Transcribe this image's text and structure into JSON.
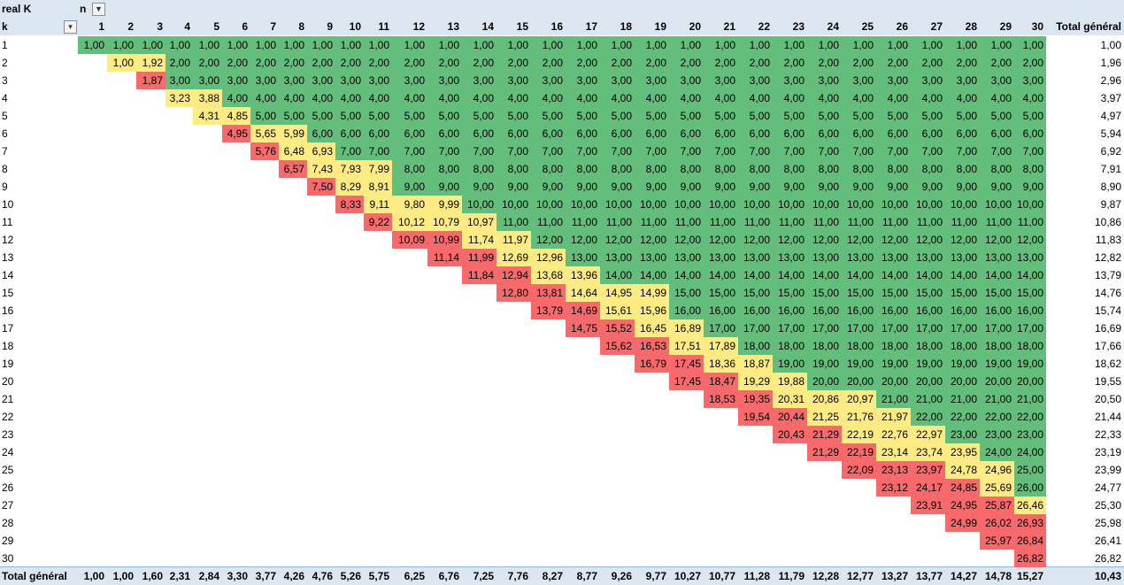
{
  "pivot": {
    "row_field_title": "real K",
    "col_field_title": "n",
    "row_field_name": "k",
    "total_label": "Total général",
    "filter_icon": "filter-funnel-icon",
    "dropdown_icon": "dropdown-arrow-icon",
    "colors": {
      "green": "#63be7b",
      "yellow": "#ffeb84",
      "red": "#f8696b",
      "header": "#dce6f1"
    },
    "columns": [
      "1",
      "2",
      "3",
      "4",
      "5",
      "6",
      "7",
      "8",
      "9",
      "10",
      "11",
      "12",
      "13",
      "14",
      "15",
      "16",
      "17",
      "18",
      "19",
      "20",
      "21",
      "22",
      "23",
      "24",
      "25",
      "26",
      "27",
      "28",
      "29",
      "30"
    ],
    "rows": [
      {
        "k": "1",
        "start": 0,
        "values": [
          "1,00",
          "1,00",
          "1,00",
          "1,00",
          "1,00",
          "1,00",
          "1,00",
          "1,00",
          "1,00",
          "1,00",
          "1,00",
          "1,00",
          "1,00",
          "1,00",
          "1,00",
          "1,00",
          "1,00",
          "1,00",
          "1,00",
          "1,00",
          "1,00",
          "1,00",
          "1,00",
          "1,00",
          "1,00",
          "1,00",
          "1,00",
          "1,00",
          "1,00",
          "1,00"
        ],
        "colors": "GGGGGGGGGGGGGGGGGGGGGGGGGGGGGG",
        "total": "1,00"
      },
      {
        "k": "2",
        "start": 1,
        "values": [
          "1,00",
          "1,92",
          "2,00",
          "2,00",
          "2,00",
          "2,00",
          "2,00",
          "2,00",
          "2,00",
          "2,00",
          "2,00",
          "2,00",
          "2,00",
          "2,00",
          "2,00",
          "2,00",
          "2,00",
          "2,00",
          "2,00",
          "2,00",
          "2,00",
          "2,00",
          "2,00",
          "2,00",
          "2,00",
          "2,00",
          "2,00",
          "2,00",
          "2,00"
        ],
        "colors": "YYGGGGGGGGGGGGGGGGGGGGGGGGGGG",
        "total": "1,96"
      },
      {
        "k": "3",
        "start": 2,
        "values": [
          "1,87",
          "3,00",
          "3,00",
          "3,00",
          "3,00",
          "3,00",
          "3,00",
          "3,00",
          "3,00",
          "3,00",
          "3,00",
          "3,00",
          "3,00",
          "3,00",
          "3,00",
          "3,00",
          "3,00",
          "3,00",
          "3,00",
          "3,00",
          "3,00",
          "3,00",
          "3,00",
          "3,00",
          "3,00",
          "3,00",
          "3,00",
          "3,00"
        ],
        "colors": "RGGGGGGGGGGGGGGGGGGGGGGGGGGG",
        "total": "2,96"
      },
      {
        "k": "4",
        "start": 3,
        "values": [
          "3,23",
          "3,88",
          "4,00",
          "4,00",
          "4,00",
          "4,00",
          "4,00",
          "4,00",
          "4,00",
          "4,00",
          "4,00",
          "4,00",
          "4,00",
          "4,00",
          "4,00",
          "4,00",
          "4,00",
          "4,00",
          "4,00",
          "4,00",
          "4,00",
          "4,00",
          "4,00",
          "4,00",
          "4,00",
          "4,00",
          "4,00"
        ],
        "colors": "YYGGGGGGGGGGGGGGGGGGGGGGGGG",
        "total": "3,97"
      },
      {
        "k": "5",
        "start": 4,
        "values": [
          "4,31",
          "4,85",
          "5,00",
          "5,00",
          "5,00",
          "5,00",
          "5,00",
          "5,00",
          "5,00",
          "5,00",
          "5,00",
          "5,00",
          "5,00",
          "5,00",
          "5,00",
          "5,00",
          "5,00",
          "5,00",
          "5,00",
          "5,00",
          "5,00",
          "5,00",
          "5,00",
          "5,00",
          "5,00",
          "5,00"
        ],
        "colors": "YYGGGGGGGGGGGGGGGGGGGGGGGG",
        "total": "4,97"
      },
      {
        "k": "6",
        "start": 5,
        "values": [
          "4,95",
          "5,65",
          "5,99",
          "6,00",
          "6,00",
          "6,00",
          "6,00",
          "6,00",
          "6,00",
          "6,00",
          "6,00",
          "6,00",
          "6,00",
          "6,00",
          "6,00",
          "6,00",
          "6,00",
          "6,00",
          "6,00",
          "6,00",
          "6,00",
          "6,00",
          "6,00",
          "6,00",
          "6,00"
        ],
        "colors": "RYYGGGGGGGGGGGGGGGGGGGGGG",
        "total": "5,94"
      },
      {
        "k": "7",
        "start": 6,
        "values": [
          "5,76",
          "6,48",
          "6,93",
          "7,00",
          "7,00",
          "7,00",
          "7,00",
          "7,00",
          "7,00",
          "7,00",
          "7,00",
          "7,00",
          "7,00",
          "7,00",
          "7,00",
          "7,00",
          "7,00",
          "7,00",
          "7,00",
          "7,00",
          "7,00",
          "7,00",
          "7,00",
          "7,00"
        ],
        "colors": "RYYGGGGGGGGGGGGGGGGGGGGG",
        "total": "6,92"
      },
      {
        "k": "8",
        "start": 7,
        "values": [
          "6,57",
          "7,43",
          "7,93",
          "7,99",
          "8,00",
          "8,00",
          "8,00",
          "8,00",
          "8,00",
          "8,00",
          "8,00",
          "8,00",
          "8,00",
          "8,00",
          "8,00",
          "8,00",
          "8,00",
          "8,00",
          "8,00",
          "8,00",
          "8,00",
          "8,00",
          "8,00"
        ],
        "colors": "RYYYGGGGGGGGGGGGGGGGGGG",
        "total": "7,91"
      },
      {
        "k": "9",
        "start": 8,
        "values": [
          "7,50",
          "8,29",
          "8,91",
          "9,00",
          "9,00",
          "9,00",
          "9,00",
          "9,00",
          "9,00",
          "9,00",
          "9,00",
          "9,00",
          "9,00",
          "9,00",
          "9,00",
          "9,00",
          "9,00",
          "9,00",
          "9,00",
          "9,00",
          "9,00",
          "9,00"
        ],
        "colors": "RYYGGGGGGGGGGGGGGGGGGG",
        "total": "8,90"
      },
      {
        "k": "10",
        "start": 9,
        "values": [
          "8,33",
          "9,11",
          "9,80",
          "9,99",
          "10,00",
          "10,00",
          "10,00",
          "10,00",
          "10,00",
          "10,00",
          "10,00",
          "10,00",
          "10,00",
          "10,00",
          "10,00",
          "10,00",
          "10,00",
          "10,00",
          "10,00",
          "10,00",
          "10,00"
        ],
        "colors": "RYYYGGGGGGGGGGGGGGGGG",
        "total": "9,87"
      },
      {
        "k": "11",
        "start": 10,
        "values": [
          "9,22",
          "10,12",
          "10,79",
          "10,97",
          "11,00",
          "11,00",
          "11,00",
          "11,00",
          "11,00",
          "11,00",
          "11,00",
          "11,00",
          "11,00",
          "11,00",
          "11,00",
          "11,00",
          "11,00",
          "11,00",
          "11,00",
          "11,00"
        ],
        "colors": "RYYYGGGGGGGGGGGGGGGG",
        "total": "10,86"
      },
      {
        "k": "12",
        "start": 11,
        "values": [
          "10,09",
          "10,99",
          "11,74",
          "11,97",
          "12,00",
          "12,00",
          "12,00",
          "12,00",
          "12,00",
          "12,00",
          "12,00",
          "12,00",
          "12,00",
          "12,00",
          "12,00",
          "12,00",
          "12,00",
          "12,00",
          "12,00"
        ],
        "colors": "RRYYGGGGGGGGGGGGGGG",
        "total": "11,83"
      },
      {
        "k": "13",
        "start": 12,
        "values": [
          "11,14",
          "11,99",
          "12,69",
          "12,96",
          "13,00",
          "13,00",
          "13,00",
          "13,00",
          "13,00",
          "13,00",
          "13,00",
          "13,00",
          "13,00",
          "13,00",
          "13,00",
          "13,00",
          "13,00",
          "13,00"
        ],
        "colors": "RRYYGGGGGGGGGGGGGG",
        "total": "12,82"
      },
      {
        "k": "14",
        "start": 13,
        "values": [
          "11,84",
          "12,94",
          "13,68",
          "13,96",
          "14,00",
          "14,00",
          "14,00",
          "14,00",
          "14,00",
          "14,00",
          "14,00",
          "14,00",
          "14,00",
          "14,00",
          "14,00",
          "14,00",
          "14,00"
        ],
        "colors": "RRYYGGGGGGGGGGGGG",
        "total": "13,79"
      },
      {
        "k": "15",
        "start": 14,
        "values": [
          "12,80",
          "13,81",
          "14,64",
          "14,95",
          "14,99",
          "15,00",
          "15,00",
          "15,00",
          "15,00",
          "15,00",
          "15,00",
          "15,00",
          "15,00",
          "15,00",
          "15,00",
          "15,00"
        ],
        "colors": "RRYYYGGGGGGGGGGG",
        "total": "14,76"
      },
      {
        "k": "16",
        "start": 15,
        "values": [
          "13,79",
          "14,69",
          "15,61",
          "15,96",
          "16,00",
          "16,00",
          "16,00",
          "16,00",
          "16,00",
          "16,00",
          "16,00",
          "16,00",
          "16,00",
          "16,00",
          "16,00"
        ],
        "colors": "RRYYGGGGGGGGGGG",
        "total": "15,74"
      },
      {
        "k": "17",
        "start": 16,
        "values": [
          "14,75",
          "15,52",
          "16,45",
          "16,89",
          "17,00",
          "17,00",
          "17,00",
          "17,00",
          "17,00",
          "17,00",
          "17,00",
          "17,00",
          "17,00",
          "17,00"
        ],
        "colors": "RRYYGGGGGGGGGG",
        "total": "16,69"
      },
      {
        "k": "18",
        "start": 17,
        "values": [
          "15,62",
          "16,53",
          "17,51",
          "17,89",
          "18,00",
          "18,00",
          "18,00",
          "18,00",
          "18,00",
          "18,00",
          "18,00",
          "18,00",
          "18,00"
        ],
        "colors": "RRYYGGGGGGGGG",
        "total": "17,66"
      },
      {
        "k": "19",
        "start": 18,
        "values": [
          "16,79",
          "17,45",
          "18,36",
          "18,87",
          "19,00",
          "19,00",
          "19,00",
          "19,00",
          "19,00",
          "19,00",
          "19,00",
          "19,00"
        ],
        "colors": "RRYYGGGGGGGG",
        "total": "18,62"
      },
      {
        "k": "20",
        "start": 19,
        "values": [
          "17,45",
          "18,47",
          "19,29",
          "19,88",
          "20,00",
          "20,00",
          "20,00",
          "20,00",
          "20,00",
          "20,00",
          "20,00"
        ],
        "colors": "RRYYGGGGGGG",
        "total": "19,55"
      },
      {
        "k": "21",
        "start": 20,
        "values": [
          "18,53",
          "19,35",
          "20,31",
          "20,86",
          "20,97",
          "21,00",
          "21,00",
          "21,00",
          "21,00",
          "21,00"
        ],
        "colors": "RRYYYGGGGG",
        "total": "20,50"
      },
      {
        "k": "22",
        "start": 21,
        "values": [
          "19,54",
          "20,44",
          "21,25",
          "21,76",
          "21,97",
          "22,00",
          "22,00",
          "22,00",
          "22,00"
        ],
        "colors": "RRYYYGGGG",
        "total": "21,44"
      },
      {
        "k": "23",
        "start": 22,
        "values": [
          "20,43",
          "21,29",
          "22,19",
          "22,76",
          "22,97",
          "23,00",
          "23,00",
          "23,00"
        ],
        "colors": "RRYYYGGG",
        "total": "22,33"
      },
      {
        "k": "24",
        "start": 23,
        "values": [
          "21,29",
          "22,19",
          "23,14",
          "23,74",
          "23,95",
          "24,00",
          "24,00"
        ],
        "colors": "RRYYYGG",
        "total": "23,19"
      },
      {
        "k": "25",
        "start": 24,
        "values": [
          "22,09",
          "23,13",
          "23,97",
          "24,78",
          "24,96",
          "25,00"
        ],
        "colors": "RRRYYG",
        "total": "23,99"
      },
      {
        "k": "26",
        "start": 25,
        "values": [
          "23,12",
          "24,17",
          "24,85",
          "25,69",
          "26,00"
        ],
        "colors": "RRRYG",
        "total": "24,77"
      },
      {
        "k": "27",
        "start": 26,
        "values": [
          "23,91",
          "24,95",
          "25,87",
          "26,46"
        ],
        "colors": "RRRY",
        "total": "25,30"
      },
      {
        "k": "28",
        "start": 27,
        "values": [
          "24,99",
          "26,02",
          "26,93"
        ],
        "colors": "RRR",
        "total": "25,98"
      },
      {
        "k": "29",
        "start": 28,
        "values": [
          "25,97",
          "26,84"
        ],
        "colors": "RR",
        "total": "26,41"
      },
      {
        "k": "30",
        "start": 29,
        "values": [
          "26,82"
        ],
        "colors": "R",
        "total": "26,82"
      }
    ],
    "grand_total": [
      "1,00",
      "1,00",
      "1,60",
      "2,31",
      "2,84",
      "3,30",
      "3,77",
      "4,26",
      "4,76",
      "5,26",
      "5,75",
      "6,25",
      "6,76",
      "7,25",
      "7,76",
      "8,27",
      "8,77",
      "9,26",
      "9,77",
      "10,27",
      "10,77",
      "11,28",
      "11,79",
      "12,28",
      "12,77",
      "13,27",
      "13,77",
      "14,27",
      "14,78",
      "15,27"
    ],
    "grand_total_all": "10,43"
  }
}
